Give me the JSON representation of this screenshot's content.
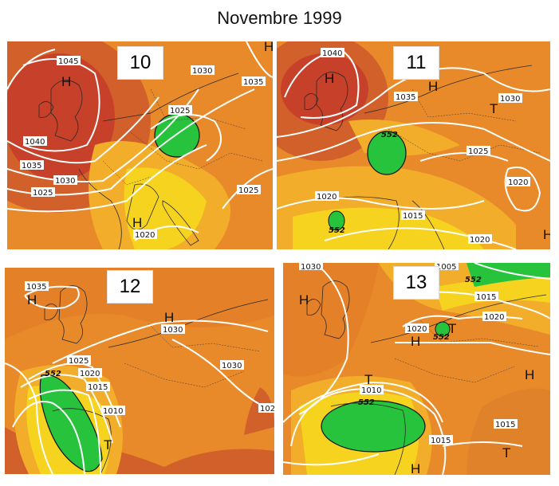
{
  "title": "Novembre 1999",
  "colors": {
    "high_red": "#c6402a",
    "orange": "#e98a2a",
    "light_orange": "#f2ad2a",
    "yellow": "#f6d31e",
    "green": "#28c33c",
    "isobar": "#ffffff"
  },
  "panels": [
    {
      "day": "10",
      "isobars": [
        "1045",
        "1040",
        "1035",
        "1030",
        "1025",
        "1020",
        "1030",
        "1035",
        "1025",
        "1025"
      ],
      "symbols": [
        "H",
        "H",
        "H"
      ],
      "geopotential": []
    },
    {
      "day": "11",
      "isobars": [
        "1040",
        "1035",
        "1030",
        "1025",
        "1020",
        "1020",
        "1015",
        "1020"
      ],
      "symbols": [
        "H",
        "H",
        "T",
        "H"
      ],
      "geopotential": [
        "552",
        "552"
      ]
    },
    {
      "day": "12",
      "isobars": [
        "1035",
        "1030",
        "1030",
        "1025",
        "1020",
        "1015",
        "1010",
        "102"
      ],
      "symbols": [
        "H",
        "H",
        "T"
      ],
      "geopotential": [
        "552"
      ]
    },
    {
      "day": "13",
      "isobars": [
        "1030",
        "1005",
        "1015",
        "1020",
        "1020",
        "1010",
        "1015",
        "1015"
      ],
      "symbols": [
        "H",
        "H",
        "T",
        "T",
        "H",
        "T",
        "H"
      ],
      "geopotential": [
        "552",
        "552",
        "552"
      ]
    }
  ]
}
